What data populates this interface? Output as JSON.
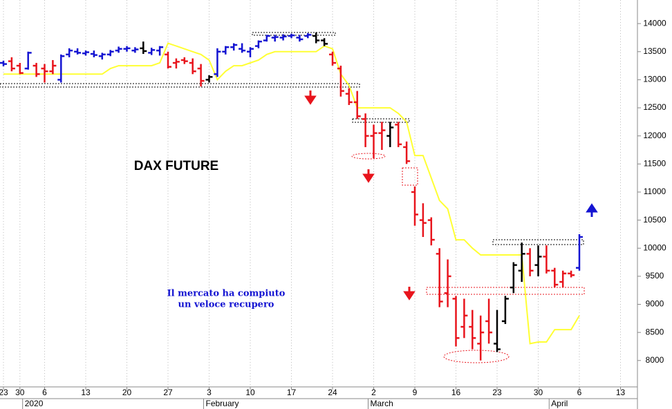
{
  "chart_data": {
    "type": "ohlc",
    "title": "DAX FUTURE",
    "annotation": [
      "Il mercato ha compiuto",
      "un veloce recupero"
    ],
    "x": [
      "2019-12-23",
      "2019-12-27",
      "2019-12-30",
      "2020-01-02",
      "2020-01-03",
      "2020-01-06",
      "2020-01-07",
      "2020-01-08",
      "2020-01-09",
      "2020-01-10",
      "2020-01-13",
      "2020-01-14",
      "2020-01-15",
      "2020-01-16",
      "2020-01-17",
      "2020-01-20",
      "2020-01-21",
      "2020-01-22",
      "2020-01-23",
      "2020-01-24",
      "2020-01-27",
      "2020-01-28",
      "2020-01-29",
      "2020-01-30",
      "2020-01-31",
      "2020-02-03",
      "2020-02-04",
      "2020-02-05",
      "2020-02-06",
      "2020-02-07",
      "2020-02-10",
      "2020-02-11",
      "2020-02-12",
      "2020-02-13",
      "2020-02-14",
      "2020-02-17",
      "2020-02-18",
      "2020-02-19",
      "2020-02-20",
      "2020-02-21",
      "2020-02-24",
      "2020-02-25",
      "2020-02-26",
      "2020-02-27",
      "2020-02-28",
      "2020-03-02",
      "2020-03-03",
      "2020-03-04",
      "2020-03-05",
      "2020-03-06",
      "2020-03-09",
      "2020-03-10",
      "2020-03-11",
      "2020-03-12",
      "2020-03-13",
      "2020-03-16",
      "2020-03-17",
      "2020-03-18",
      "2020-03-19",
      "2020-03-20",
      "2020-03-23",
      "2020-03-24",
      "2020-03-25",
      "2020-03-26",
      "2020-03-27",
      "2020-03-30",
      "2020-03-31",
      "2020-04-01",
      "2020-04-02",
      "2020-04-03",
      "2020-04-06"
    ],
    "ohlc": {
      "open": [
        13300,
        13330,
        13250,
        13200,
        13250,
        13200,
        13150,
        13000,
        13450,
        13500,
        13470,
        13460,
        13420,
        13450,
        13520,
        13550,
        13520,
        13560,
        13480,
        13520,
        13450,
        13300,
        13350,
        13300,
        13200,
        13000,
        13100,
        13500,
        13580,
        13550,
        13500,
        13600,
        13700,
        13750,
        13750,
        13780,
        13750,
        13780,
        13780,
        13700,
        13450,
        13200,
        12750,
        12600,
        12300,
        12000,
        12050,
        12000,
        12200,
        11800,
        11000,
        10500,
        10500,
        9900,
        9200,
        9100,
        8600,
        8600,
        8300,
        8700,
        8300,
        8700,
        9300,
        9600,
        9900,
        9700,
        9850,
        9600,
        9400,
        9550,
        9650
      ],
      "high": [
        13340,
        13400,
        13300,
        13500,
        13300,
        13280,
        13350,
        13450,
        13560,
        13560,
        13520,
        13520,
        13480,
        13530,
        13590,
        13600,
        13580,
        13680,
        13570,
        13600,
        13500,
        13380,
        13400,
        13380,
        13280,
        13080,
        13560,
        13600,
        13650,
        13650,
        13580,
        13700,
        13800,
        13800,
        13810,
        13820,
        13800,
        13830,
        13840,
        13740,
        13500,
        13250,
        12850,
        12800,
        12400,
        12200,
        12250,
        12250,
        12250,
        11900,
        11100,
        10800,
        10550,
        10000,
        9800,
        9150,
        9100,
        8900,
        8800,
        9100,
        8900,
        9150,
        9750,
        10100,
        10000,
        10050,
        10050,
        9650,
        9600,
        9600,
        10250
      ],
      "low": [
        13240,
        13150,
        13100,
        13180,
        13050,
        12950,
        13100,
        12950,
        13400,
        13450,
        13430,
        13400,
        13360,
        13420,
        13480,
        13500,
        13480,
        13460,
        13440,
        13430,
        13200,
        13200,
        13280,
        13100,
        12880,
        12950,
        13050,
        13450,
        13520,
        13480,
        13400,
        13560,
        13680,
        13680,
        13700,
        13740,
        13680,
        13740,
        13650,
        13600,
        13250,
        12700,
        12550,
        12300,
        11800,
        11600,
        11750,
        11800,
        11800,
        11500,
        10400,
        10200,
        10050,
        8950,
        8950,
        8250,
        8400,
        8200,
        8000,
        8300,
        8150,
        8650,
        9200,
        9400,
        9500,
        9500,
        9550,
        9300,
        9300,
        9480,
        9600
      ],
      "close": [
        13280,
        13200,
        13120,
        13480,
        13100,
        13150,
        13250,
        13420,
        13520,
        13480,
        13490,
        13440,
        13450,
        13500,
        13550,
        13560,
        13540,
        13510,
        13530,
        13580,
        13230,
        13320,
        13330,
        13150,
        12980,
        13050,
        13500,
        13580,
        13620,
        13520,
        13550,
        13680,
        13780,
        13760,
        13770,
        13790,
        13720,
        13800,
        13700,
        13640,
        13300,
        12800,
        12600,
        12350,
        12000,
        12050,
        12100,
        12150,
        11850,
        11550,
        10600,
        10450,
        10150,
        9050,
        9500,
        8400,
        8800,
        8400,
        8500,
        8500,
        8200,
        9100,
        9700,
        9900,
        9600,
        9850,
        9600,
        9350,
        9550,
        9520,
        10200
      ],
      "colors": [
        "#1414d2",
        "#e8141c",
        "#e8141c",
        "#1414d2",
        "#e8141c",
        "#e8141c",
        "#e8141c",
        "#1414d2",
        "#1414d2",
        "#1414d2",
        "#1414d2",
        "#1414d2",
        "#1414d2",
        "#1414d2",
        "#1414d2",
        "#1414d2",
        "#1414d2",
        "#000000",
        "#1414d2",
        "#1414d2",
        "#e8141c",
        "#e8141c",
        "#e8141c",
        "#e8141c",
        "#e8141c",
        "#000000",
        "#1414d2",
        "#1414d2",
        "#1414d2",
        "#1414d2",
        "#1414d2",
        "#1414d2",
        "#1414d2",
        "#1414d2",
        "#1414d2",
        "#1414d2",
        "#1414d2",
        "#1414d2",
        "#000000",
        "#000000",
        "#e8141c",
        "#e8141c",
        "#e8141c",
        "#e8141c",
        "#e8141c",
        "#e8141c",
        "#e8141c",
        "#000000",
        "#e8141c",
        "#e8141c",
        "#e8141c",
        "#e8141c",
        "#e8141c",
        "#e8141c",
        "#e8141c",
        "#e8141c",
        "#e8141c",
        "#e8141c",
        "#e8141c",
        "#e8141c",
        "#000000",
        "#000000",
        "#000000",
        "#000000",
        "#e8141c",
        "#000000",
        "#e8141c",
        "#e8141c",
        "#e8141c",
        "#e8141c",
        "#1414d2"
      ]
    },
    "line": {
      "color": "#ffff33",
      "values": [
        13100,
        13100,
        13100,
        13100,
        13100,
        13100,
        13100,
        13100,
        13100,
        13100,
        13100,
        13100,
        13100,
        13200,
        13250,
        13250,
        13250,
        13250,
        13250,
        13300,
        13650,
        13600,
        13550,
        13500,
        13450,
        13350,
        13000,
        13150,
        13250,
        13250,
        13300,
        13350,
        13450,
        13500,
        13500,
        13500,
        13500,
        13500,
        13500,
        13600,
        13550,
        13100,
        12900,
        12500,
        12500,
        12500,
        12500,
        12500,
        12400,
        12250,
        11650,
        11650,
        11250,
        10850,
        10700,
        10150,
        10150,
        10000,
        9880,
        9880,
        9880,
        9880,
        9880,
        9880,
        8300,
        8330,
        8330,
        8550,
        8550,
        8550,
        8800
      ]
    },
    "ylim": [
      7530,
      14420
    ],
    "yticks": [
      8000,
      8500,
      9000,
      9500,
      10000,
      10500,
      11000,
      11500,
      12000,
      12500,
      13000,
      13500,
      14000
    ],
    "xticks": [
      {
        "value": "2019-12-23",
        "label": "23"
      },
      {
        "value": "2019-12-30",
        "label": "30"
      },
      {
        "value": "2020-01-06",
        "label": "6"
      },
      {
        "value": "2020-01-13",
        "label": "13"
      },
      {
        "value": "2020-01-20",
        "label": "20"
      },
      {
        "value": "2020-01-27",
        "label": "27"
      },
      {
        "value": "2020-02-03",
        "label": "3"
      },
      {
        "value": "2020-02-10",
        "label": "10"
      },
      {
        "value": "2020-02-17",
        "label": "17"
      },
      {
        "value": "2020-02-24",
        "label": "24"
      },
      {
        "value": "2020-03-02",
        "label": "2"
      },
      {
        "value": "2020-03-09",
        "label": "9"
      },
      {
        "value": "2020-03-16",
        "label": "16"
      },
      {
        "value": "2020-03-23",
        "label": "23"
      },
      {
        "value": "2020-03-30",
        "label": "30"
      },
      {
        "value": "2020-04-06",
        "label": "6"
      },
      {
        "value": "2020-04-13",
        "label": "13"
      }
    ],
    "month_ticks": [
      {
        "value": "2020-01-02",
        "label": "2020"
      },
      {
        "value": "2020-02-03",
        "label": "February"
      },
      {
        "value": "2020-03-02",
        "label": "March"
      },
      {
        "value": "2020-04-01",
        "label": "April"
      }
    ],
    "grid": true
  }
}
